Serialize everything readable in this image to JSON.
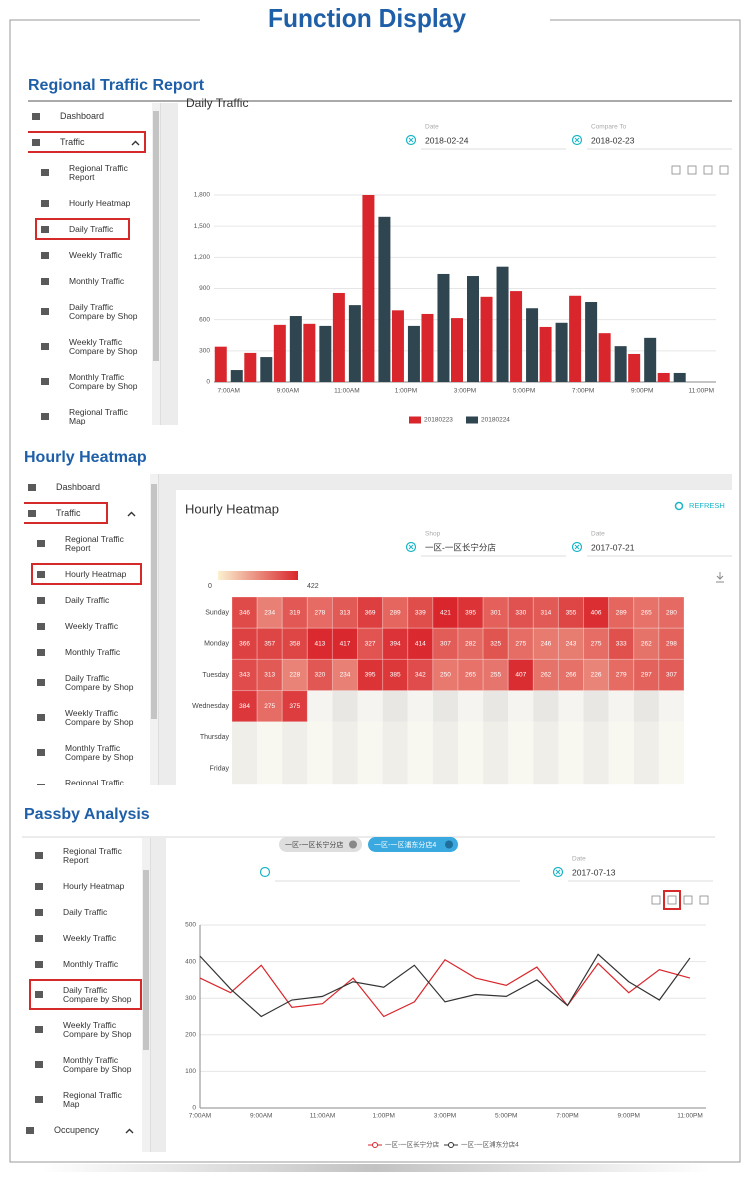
{
  "header": {
    "title": "Function Display"
  },
  "panels": [
    {
      "title": "Regional Traffic Report",
      "menu": [
        "Dashboard",
        "Traffic",
        "Regional Traffic Report",
        "Hourly Heatmap",
        "Daily Traffic",
        "Weekly Traffic",
        "Monthly Traffic",
        "Daily Traffic Compare by Shop",
        "Weekly Traffic Compare by Shop",
        "Monthly Traffic Compare by Shop",
        "Regional Traffic Map"
      ],
      "heading": "Daily Traffic",
      "fields": [
        {
          "label": "Date",
          "value": "2018-02-24"
        },
        {
          "label": "Compare To",
          "value": "2018-02-23"
        }
      ]
    },
    {
      "title": "Hourly Heatmap",
      "menu": [
        "Dashboard",
        "Traffic",
        "Regional Traffic Report",
        "Hourly Heatmap",
        "Daily Traffic",
        "Weekly Traffic",
        "Monthly Traffic",
        "Daily Traffic Compare by Shop",
        "Weekly Traffic Compare by Shop",
        "Monthly Traffic Compare by Shop",
        "Regional Traffic Map"
      ],
      "heading": "Hourly Heatmap",
      "button": "REFRESH",
      "fields": [
        {
          "label": "Shop",
          "value": "一区-一区长宁分店"
        },
        {
          "label": "Date",
          "value": "2017-07-21"
        }
      ]
    },
    {
      "title": "Passby Analysis",
      "menu": [
        "Regional Traffic Report",
        "Hourly Heatmap",
        "Daily Traffic",
        "Weekly Traffic",
        "Monthly Traffic",
        "Daily Traffic Compare by Shop",
        "Weekly Traffic Compare by Shop",
        "Monthly Traffic Compare by Shop",
        "Regional Traffic Map",
        "Occupency"
      ],
      "tags": [
        "一区-一区长宁分店",
        "一区-一区浦东分店4"
      ],
      "fields": [
        {
          "label": "Date",
          "value": "2017-07-13"
        }
      ]
    }
  ],
  "chart_data": [
    {
      "type": "bar",
      "categories": [
        "7:00AM",
        null,
        "9:00AM",
        null,
        "11:00AM",
        null,
        "1:00PM",
        null,
        "3:00PM",
        null,
        "5:00PM",
        null,
        "7:00PM",
        null,
        "9:00PM",
        null,
        "11:00PM"
      ],
      "series": [
        {
          "name": "20180223",
          "color": "#d9262c",
          "values": [
            340,
            280,
            550,
            560,
            857,
            1800,
            690,
            655,
            615,
            820,
            875,
            530,
            830,
            470,
            270,
            87,
            0
          ]
        },
        {
          "name": "20180224",
          "color": "#2f4550",
          "values": [
            115,
            240,
            635,
            540,
            740,
            1590,
            540,
            1040,
            1020,
            1110,
            710,
            570,
            770,
            345,
            425,
            87,
            0
          ]
        }
      ],
      "ylim": [
        0,
        1800
      ],
      "yticks": [
        0,
        300,
        600,
        900,
        {
          "value": 1200,
          "label": "1,200"
        },
        {
          "value": 1500,
          "label": "1,500"
        },
        {
          "value": 1800,
          "label": "1,800"
        }
      ],
      "grid": true,
      "legend": "bottom"
    },
    {
      "type": "heatmap",
      "rows": [
        "Sunday",
        "Monday",
        "Tuesday",
        "Wednesday",
        "Thursday",
        "Friday"
      ],
      "values": [
        [
          346,
          234,
          319,
          278,
          313,
          369,
          289,
          339,
          421,
          395,
          301,
          330,
          314,
          355,
          406,
          289,
          265,
          280
        ],
        [
          366,
          357,
          358,
          413,
          417,
          327,
          394,
          414,
          307,
          282,
          325,
          275,
          246,
          243,
          275,
          333,
          262,
          298
        ],
        [
          343,
          313,
          228,
          320,
          234,
          395,
          385,
          342,
          250,
          265,
          255,
          407,
          262,
          266,
          226,
          279,
          297,
          307
        ],
        [
          384,
          275,
          375,
          null,
          null,
          null,
          null,
          null,
          null,
          null,
          null,
          null,
          null,
          null,
          null,
          null,
          null,
          null
        ],
        [
          null,
          null,
          null,
          null,
          null,
          null,
          null,
          null,
          null,
          null,
          null,
          null,
          null,
          null,
          null,
          null,
          null,
          null
        ],
        [
          null,
          null,
          null,
          null,
          null,
          null,
          null,
          null,
          null,
          null,
          null,
          null,
          null,
          null,
          null,
          null,
          null,
          null
        ]
      ],
      "scale": [
        0,
        422
      ],
      "colors": [
        "#fbf1cf",
        "#d9262c"
      ]
    },
    {
      "type": "line",
      "categories": [
        "7:00AM",
        null,
        "9:00AM",
        null,
        "11:00AM",
        null,
        "1:00PM",
        null,
        "3:00PM",
        null,
        "5:00PM",
        null,
        "7:00PM",
        null,
        "9:00PM",
        null,
        "11:00PM"
      ],
      "series": [
        {
          "name": "一区-一区长宁分店",
          "color": "#d9262c",
          "values": [
            355,
            315,
            390,
            275,
            285,
            355,
            250,
            290,
            405,
            355,
            335,
            385,
            280,
            395,
            315,
            378,
            355
          ]
        },
        {
          "name": "一区-一区浦东分店4",
          "color": "#333333",
          "values": [
            415,
            325,
            250,
            295,
            305,
            345,
            330,
            390,
            290,
            310,
            305,
            350,
            280,
            420,
            345,
            295,
            410
          ]
        }
      ],
      "ylim": [
        0,
        500
      ],
      "yticks": [
        0,
        100,
        200,
        300,
        400,
        500
      ],
      "grid": true,
      "legend": "bottom"
    }
  ]
}
